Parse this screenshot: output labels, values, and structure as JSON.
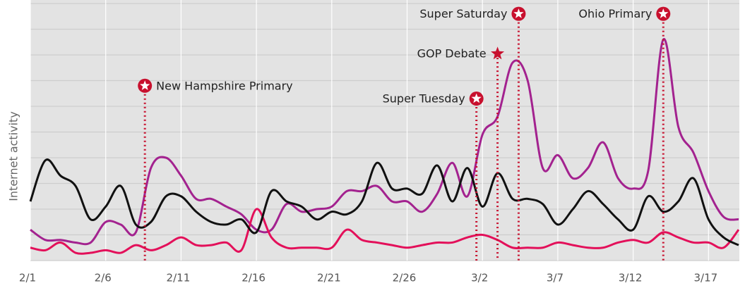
{
  "chart_data": {
    "type": "line",
    "y_label": "Internet activity",
    "categories": [
      "2/1",
      null,
      null,
      null,
      null,
      "2/6",
      null,
      null,
      null,
      null,
      "2/11",
      null,
      null,
      null,
      null,
      "2/16",
      null,
      null,
      null,
      null,
      "2/21",
      null,
      null,
      null,
      null,
      "2/26",
      null,
      null,
      null,
      null,
      "3/2",
      null,
      null,
      null,
      null,
      "3/7",
      null,
      null,
      null,
      null,
      "3/12",
      null,
      null,
      null,
      null,
      "3/17",
      null,
      null
    ],
    "ylim": [
      0,
      10
    ],
    "yticks": [
      0,
      1,
      2,
      3,
      4,
      5,
      6,
      7,
      8,
      9,
      10
    ],
    "grid": true,
    "series": [
      {
        "color": "#a3228f",
        "values": [
          1.2,
          0.8,
          0.8,
          0.7,
          0.7,
          1.5,
          1.4,
          1.1,
          3.6,
          4.0,
          3.3,
          2.4,
          2.4,
          2.1,
          1.8,
          1.2,
          1.2,
          2.2,
          1.9,
          2.0,
          2.1,
          2.7,
          2.7,
          2.9,
          2.3,
          2.3,
          1.9,
          2.6,
          3.8,
          2.5,
          4.9,
          5.6,
          7.7,
          7.0,
          3.6,
          4.1,
          3.2,
          3.6,
          4.6,
          3.2,
          2.8,
          3.5,
          8.6,
          5.2,
          4.2,
          2.7,
          1.7,
          1.6
        ]
      },
      {
        "color": "#e3105a",
        "values": [
          0.5,
          0.4,
          0.7,
          0.3,
          0.3,
          0.4,
          0.3,
          0.6,
          0.4,
          0.6,
          0.9,
          0.6,
          0.6,
          0.7,
          0.4,
          2.0,
          0.9,
          0.5,
          0.5,
          0.5,
          0.5,
          1.2,
          0.8,
          0.7,
          0.6,
          0.5,
          0.6,
          0.7,
          0.7,
          0.9,
          1.0,
          0.8,
          0.5,
          0.5,
          0.5,
          0.7,
          0.6,
          0.5,
          0.5,
          0.7,
          0.8,
          0.7,
          1.1,
          0.9,
          0.7,
          0.7,
          0.5,
          1.2
        ]
      },
      {
        "color": "#111111",
        "values": [
          2.3,
          3.9,
          3.3,
          2.9,
          1.6,
          2.1,
          2.9,
          1.4,
          1.5,
          2.5,
          2.5,
          1.9,
          1.5,
          1.4,
          1.6,
          1.1,
          2.7,
          2.3,
          2.1,
          1.6,
          1.9,
          1.8,
          2.3,
          3.8,
          2.8,
          2.8,
          2.6,
          3.7,
          2.3,
          3.6,
          2.1,
          3.4,
          2.4,
          2.4,
          2.2,
          1.4,
          2.0,
          2.7,
          2.2,
          1.6,
          1.2,
          2.5,
          1.9,
          2.3,
          3.2,
          1.6,
          0.9,
          0.6
        ]
      }
    ],
    "events": [
      {
        "label": "New Hampshire Primary",
        "x": 7.6,
        "y": 6.8,
        "marker": "circle-star"
      },
      {
        "label": "Super Tuesday",
        "x": 29.6,
        "y": 6.3,
        "marker": "circle-star"
      },
      {
        "label": "GOP Debate",
        "x": 31.0,
        "y": 8.05,
        "marker": "star"
      },
      {
        "label": "Super Saturday",
        "x": 32.4,
        "y": 9.6,
        "marker": "circle-star"
      },
      {
        "label": "Ohio Primary",
        "x": 42.0,
        "y": 9.6,
        "marker": "circle-star"
      }
    ],
    "event_color": "#c8102e"
  }
}
